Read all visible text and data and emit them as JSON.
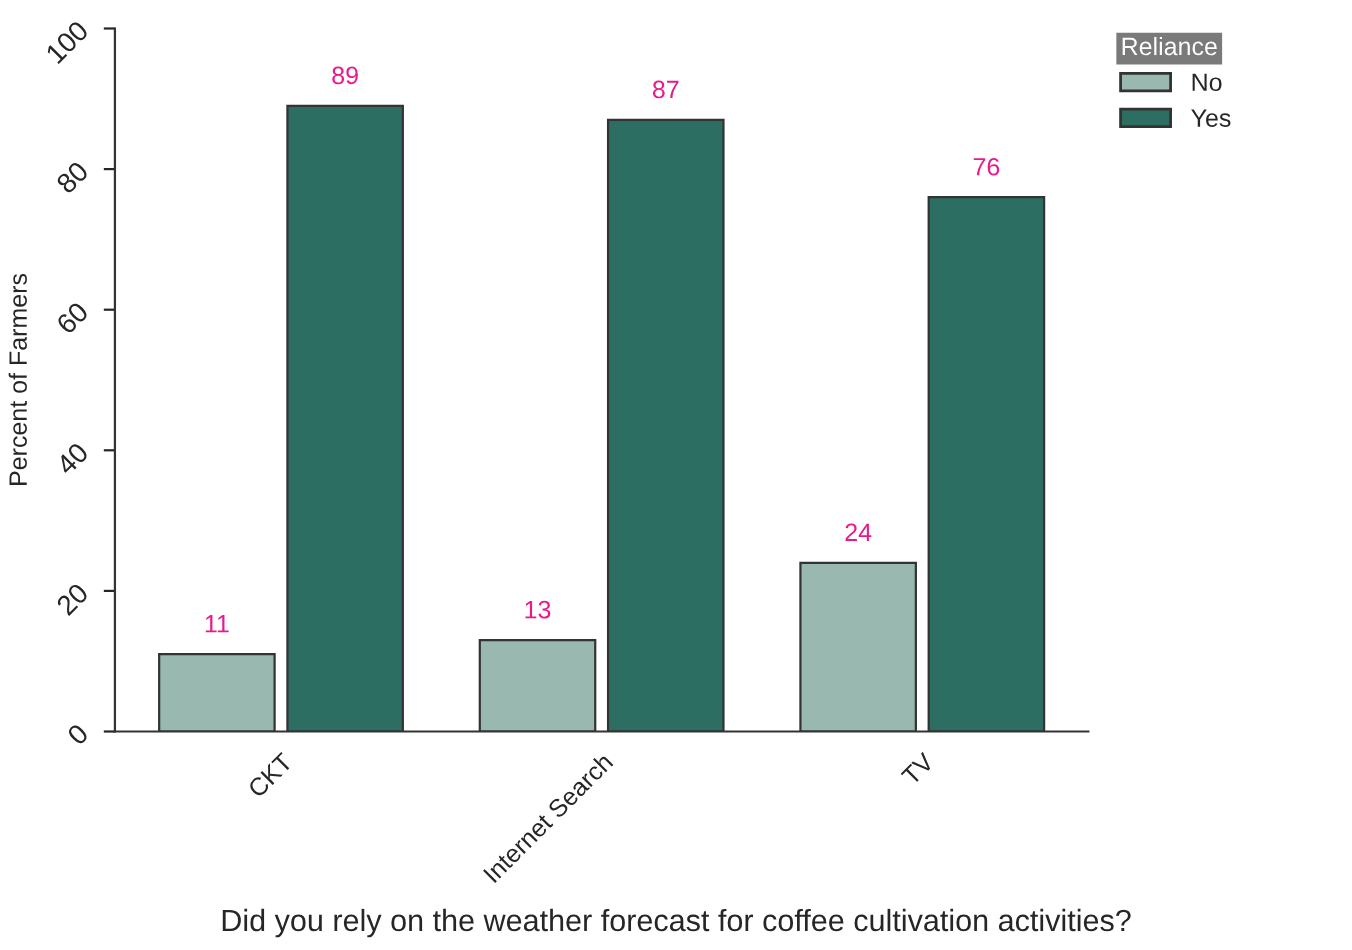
{
  "chart_data": {
    "type": "bar",
    "xlabel": "Did you rely on the weather forecast for coffee cultivation activities?",
    "ylabel": "Percent of Farmers",
    "categories": [
      "CKT",
      "Internet Search",
      "TV"
    ],
    "series": [
      {
        "name": "No",
        "color": "#98b8b0",
        "values": [
          11,
          13,
          24
        ]
      },
      {
        "name": "Yes",
        "color": "#2d6e63",
        "values": [
          89,
          87,
          76
        ]
      }
    ],
    "legend_title": "Reliance",
    "legend": "top right",
    "data_labels": true,
    "ylim": [
      0,
      100
    ],
    "yticks": [
      0,
      20,
      40,
      60,
      80,
      100
    ],
    "grid": false
  }
}
